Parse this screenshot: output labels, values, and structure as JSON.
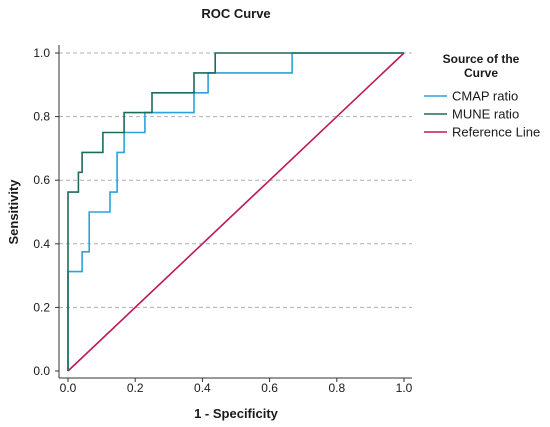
{
  "chart_data": {
    "type": "line",
    "title": "ROC Curve",
    "xlabel": "1 - Specificity",
    "ylabel": "Sensitivity",
    "xlim": [
      0,
      1
    ],
    "ylim": [
      0,
      1
    ],
    "xticks": [
      "0.0",
      "0.2",
      "0.4",
      "0.6",
      "0.8",
      "1.0"
    ],
    "yticks": [
      "0.0",
      "0.2",
      "0.4",
      "0.6",
      "0.8",
      "1.0"
    ],
    "grid": "horizontal-dashed",
    "legend": {
      "title_lines": [
        "Source of the",
        "Curve"
      ],
      "placement": "right"
    },
    "series": [
      {
        "name": "CMAP ratio",
        "color": "#29a3dd",
        "points": [
          [
            0,
            0
          ],
          [
            0,
            0.3125
          ],
          [
            0.042,
            0.3125
          ],
          [
            0.042,
            0.375
          ],
          [
            0.063,
            0.375
          ],
          [
            0.063,
            0.5
          ],
          [
            0.125,
            0.5
          ],
          [
            0.125,
            0.5625
          ],
          [
            0.146,
            0.5625
          ],
          [
            0.146,
            0.6875
          ],
          [
            0.167,
            0.6875
          ],
          [
            0.167,
            0.75
          ],
          [
            0.229,
            0.75
          ],
          [
            0.229,
            0.8125
          ],
          [
            0.375,
            0.8125
          ],
          [
            0.375,
            0.875
          ],
          [
            0.417,
            0.875
          ],
          [
            0.417,
            0.9375
          ],
          [
            0.667,
            0.9375
          ],
          [
            0.667,
            1
          ],
          [
            1,
            1
          ]
        ]
      },
      {
        "name": "MUNE ratio",
        "color": "#1e6b5c",
        "points": [
          [
            0,
            0
          ],
          [
            0,
            0.5625
          ],
          [
            0.021,
            0.5625
          ],
          [
            0.021,
            0.5625
          ],
          [
            0.031,
            0.5625
          ],
          [
            0.031,
            0.625
          ],
          [
            0.042,
            0.625
          ],
          [
            0.042,
            0.6875
          ],
          [
            0.104,
            0.6875
          ],
          [
            0.104,
            0.75
          ],
          [
            0.167,
            0.75
          ],
          [
            0.167,
            0.8125
          ],
          [
            0.25,
            0.8125
          ],
          [
            0.25,
            0.875
          ],
          [
            0.375,
            0.875
          ],
          [
            0.375,
            0.9375
          ],
          [
            0.438,
            0.9375
          ],
          [
            0.438,
            1
          ],
          [
            1,
            1
          ]
        ]
      },
      {
        "name": "Reference Line",
        "color": "#c0185a",
        "points": [
          [
            0,
            0
          ],
          [
            1,
            1
          ]
        ]
      }
    ]
  }
}
